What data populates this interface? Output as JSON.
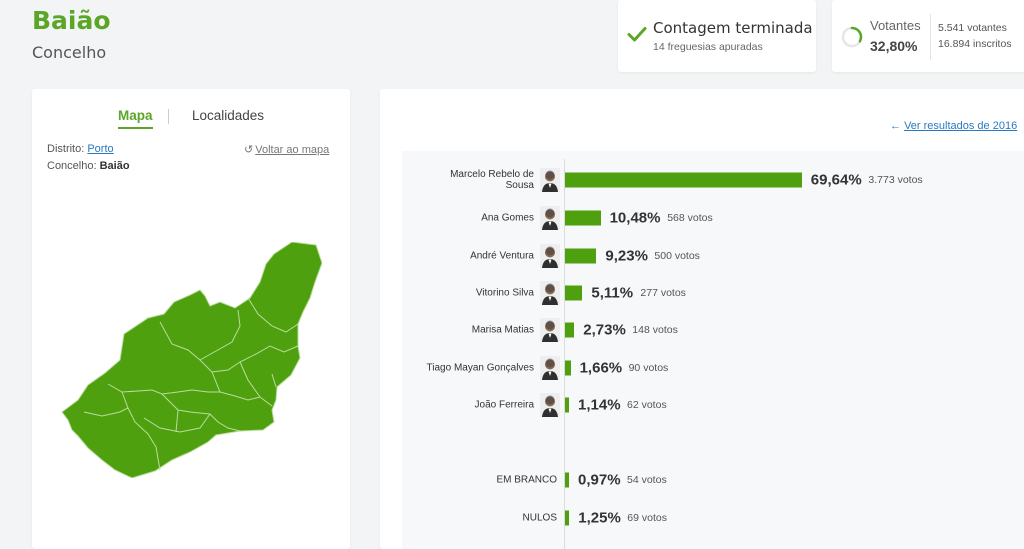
{
  "header": {
    "title": "Baião",
    "subtitle": "Concelho"
  },
  "status": {
    "title": "Contagem terminada",
    "subtitle": "14 freguesias apuradas",
    "icon": "check-icon",
    "color": "#5ba626"
  },
  "voters": {
    "label": "Votantes",
    "percent": "32,80%",
    "percent_value": 32.8,
    "voters": "5.541 votantes",
    "registered": "16.894 inscritos",
    "icon": "progress-ring-icon"
  },
  "map_panel": {
    "tabs": [
      {
        "label": "Mapa",
        "active": true
      },
      {
        "label": "Localidades",
        "active": false
      }
    ],
    "district_label": "Distrito:",
    "district_value": "Porto",
    "county_label": "Concelho:",
    "county_value": "Baião",
    "back_link": "Voltar ao mapa",
    "map_color": "#4ea00f"
  },
  "results": {
    "prev_link": "Ver resultados de 2016",
    "bar_color": "#4ea00f",
    "max_percent": 100,
    "rows": [
      {
        "name": "Marcelo Rebelo de Sousa",
        "percent": "69,64%",
        "value": 69.64,
        "votes": "3.773 votos",
        "photo": "candidate-photo"
      },
      {
        "name": "Ana Gomes",
        "percent": "10,48%",
        "value": 10.48,
        "votes": "568 votos",
        "photo": "candidate-photo"
      },
      {
        "name": "André Ventura",
        "percent": "9,23%",
        "value": 9.23,
        "votes": "500 votos",
        "photo": "candidate-photo"
      },
      {
        "name": "Vitorino Silva",
        "percent": "5,11%",
        "value": 5.11,
        "votes": "277 votos",
        "photo": "candidate-photo"
      },
      {
        "name": "Marisa Matias",
        "percent": "2,73%",
        "value": 2.73,
        "votes": "148 votos",
        "photo": "candidate-photo"
      },
      {
        "name": "Tiago Mayan Gonçalves",
        "percent": "1,66%",
        "value": 1.66,
        "votes": "90 votos",
        "photo": "candidate-photo"
      },
      {
        "name": "João Ferreira",
        "percent": "1,14%",
        "value": 1.14,
        "votes": "62 votos",
        "photo": "candidate-photo"
      }
    ],
    "blank": {
      "name": "EM BRANCO",
      "percent": "0,97%",
      "value": 0.97,
      "votes": "54 votos"
    },
    "null": {
      "name": "NULOS",
      "percent": "1,25%",
      "value": 1.25,
      "votes": "69 votos"
    }
  }
}
